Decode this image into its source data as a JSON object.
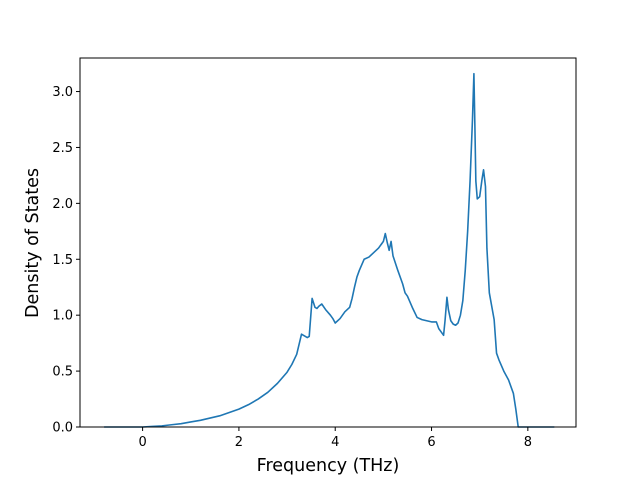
{
  "chart_data": {
    "type": "line",
    "title": "",
    "xlabel": "Frequency (THz)",
    "ylabel": "Density of States",
    "xlim": [
      -1.3,
      9.0
    ],
    "ylim": [
      0.0,
      3.3
    ],
    "xticks": [
      0,
      2,
      4,
      6,
      8
    ],
    "yticks": [
      0.0,
      0.5,
      1.0,
      1.5,
      2.0,
      2.5,
      3.0
    ],
    "xtick_labels": [
      "0",
      "2",
      "4",
      "6",
      "8"
    ],
    "ytick_labels": [
      "0.0",
      "0.5",
      "1.0",
      "1.5",
      "2.0",
      "2.5",
      "3.0"
    ],
    "grid": false,
    "legend": "none",
    "line_color": "#1f77b4",
    "series": [
      {
        "x": [
          -0.8,
          -0.4,
          0.0,
          0.2,
          0.4,
          0.6,
          0.8,
          1.0,
          1.2,
          1.4,
          1.6,
          1.8,
          2.0,
          2.2,
          2.4,
          2.6,
          2.8,
          3.0,
          3.1,
          3.2,
          3.3,
          3.38,
          3.42,
          3.46,
          3.52,
          3.58,
          3.62,
          3.66,
          3.72,
          3.8,
          3.9,
          3.95,
          4.0,
          4.1,
          4.2,
          4.25,
          4.3,
          4.35,
          4.4,
          4.45,
          4.5,
          4.6,
          4.7,
          4.8,
          4.9,
          5.0,
          5.04,
          5.08,
          5.12,
          5.16,
          5.2,
          5.3,
          5.4,
          5.45,
          5.5,
          5.6,
          5.7,
          5.8,
          5.9,
          6.0,
          6.1,
          6.15,
          6.2,
          6.25,
          6.28,
          6.32,
          6.35,
          6.4,
          6.45,
          6.5,
          6.55,
          6.6,
          6.65,
          6.7,
          6.75,
          6.8,
          6.85,
          6.88,
          6.9,
          6.92,
          6.95,
          7.0,
          7.05,
          7.08,
          7.12,
          7.15,
          7.2,
          7.25,
          7.3,
          7.35,
          7.4,
          7.5,
          7.6,
          7.7,
          7.75,
          7.8,
          8.0,
          8.3,
          8.55
        ],
        "y": [
          0.0,
          0.0,
          0.0,
          0.005,
          0.01,
          0.02,
          0.03,
          0.045,
          0.06,
          0.08,
          0.1,
          0.13,
          0.16,
          0.2,
          0.25,
          0.31,
          0.39,
          0.49,
          0.56,
          0.65,
          0.83,
          0.81,
          0.8,
          0.81,
          1.15,
          1.07,
          1.06,
          1.08,
          1.1,
          1.05,
          1.0,
          0.97,
          0.93,
          0.97,
          1.03,
          1.05,
          1.07,
          1.15,
          1.25,
          1.34,
          1.4,
          1.5,
          1.52,
          1.56,
          1.6,
          1.66,
          1.73,
          1.65,
          1.58,
          1.66,
          1.53,
          1.4,
          1.28,
          1.2,
          1.17,
          1.07,
          0.98,
          0.96,
          0.95,
          0.94,
          0.94,
          0.88,
          0.85,
          0.82,
          0.95,
          1.16,
          1.05,
          0.95,
          0.92,
          0.91,
          0.93,
          1.0,
          1.13,
          1.4,
          1.75,
          2.2,
          2.75,
          3.16,
          2.7,
          2.2,
          2.04,
          2.06,
          2.22,
          2.3,
          2.15,
          1.6,
          1.2,
          1.08,
          0.96,
          0.66,
          0.6,
          0.5,
          0.42,
          0.3,
          0.16,
          0.0,
          0.0,
          0.0,
          0.0
        ]
      }
    ]
  }
}
